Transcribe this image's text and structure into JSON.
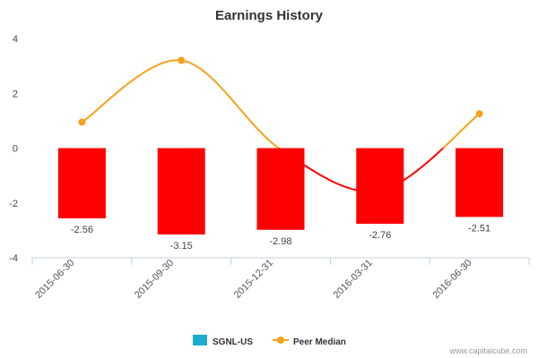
{
  "chart_data": {
    "type": "bar",
    "title": "Earnings History",
    "categories": [
      "2015-06-30",
      "2015-09-30",
      "2015-12-31",
      "2016-03-31",
      "2016-06-30"
    ],
    "series": [
      {
        "name": "SGNL-US",
        "type": "bar",
        "values": [
          -2.56,
          -3.15,
          -2.98,
          -2.76,
          -2.51
        ],
        "data_labels": [
          "-2.56",
          "-3.15",
          "-2.98",
          "-2.76",
          "-2.51"
        ],
        "bar_color": "#ff0000",
        "legend_color": "#1aadce"
      },
      {
        "name": "Peer Median",
        "type": "line",
        "values": [
          0.95,
          3.2,
          -0.05,
          -1.55,
          1.25
        ],
        "color": "#f7a21b",
        "negative_color": "#ff0000"
      }
    ],
    "ylim": [
      -4,
      4
    ],
    "yticks": [
      "4",
      "2",
      "0",
      "-2",
      "-4"
    ],
    "legend_position": "bottom",
    "credit": "www.capitalcube.com"
  }
}
